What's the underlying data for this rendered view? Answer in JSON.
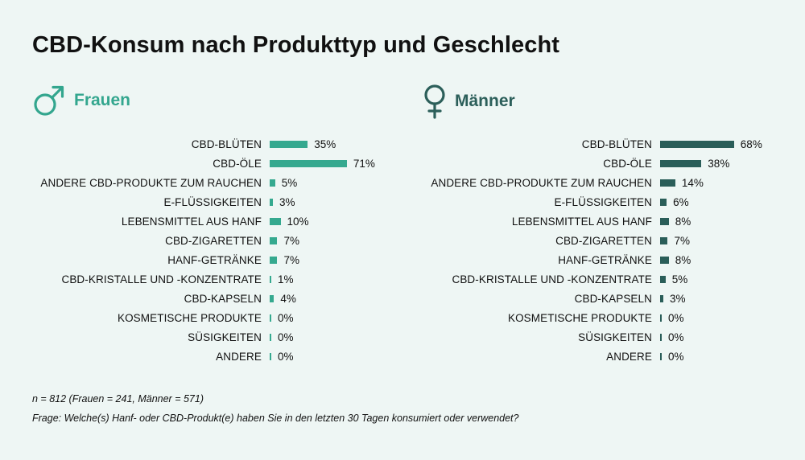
{
  "title": "CBD-Konsum nach Produkttyp und Geschlecht",
  "colors": {
    "frauen": "#35a98f",
    "maenner": "#2a5e59",
    "background": "#eef6f4"
  },
  "chart_data": [
    {
      "type": "bar",
      "orientation": "horizontal",
      "title": "Frauen",
      "icon": "male-symbol-icon",
      "categories": [
        "CBD-BLÜTEN",
        "CBD-ÖLE",
        "ANDERE CBD-PRODUKTE ZUM RAUCHEN",
        "E-FLÜSSIGKEITEN",
        "LEBENSMITTEL AUS HANF",
        "CBD-ZIGARETTEN",
        "HANF-GETRÄNKE",
        "CBD-KRISTALLE UND -KONZENTRATE",
        "CBD-KAPSELN",
        "KOSMETISCHE PRODUKTE",
        "SÜSIGKEITEN",
        "ANDERE"
      ],
      "values": [
        35,
        71,
        5,
        3,
        10,
        7,
        7,
        1,
        4,
        0,
        0,
        0
      ],
      "value_labels": [
        "35%",
        "71%",
        "5%",
        "3%",
        "10%",
        "7%",
        "7%",
        "1%",
        "4%",
        "0%",
        "0%",
        "0%"
      ],
      "unit": "%",
      "xlim": [
        0,
        100
      ],
      "grid": false
    },
    {
      "type": "bar",
      "orientation": "horizontal",
      "title": "Männer",
      "icon": "female-symbol-icon",
      "categories": [
        "CBD-BLÜTEN",
        "CBD-ÖLE",
        "ANDERE CBD-PRODUKTE ZUM RAUCHEN",
        "E-FLÜSSIGKEITEN",
        "LEBENSMITTEL AUS HANF",
        "CBD-ZIGARETTEN",
        "HANF-GETRÄNKE",
        "CBD-KRISTALLE UND -KONZENTRATE",
        "CBD-KAPSELN",
        "KOSMETISCHE PRODUKTE",
        "SÜSIGKEITEN",
        "ANDERE"
      ],
      "values": [
        68,
        38,
        14,
        6,
        8,
        7,
        8,
        5,
        3,
        0,
        0,
        0
      ],
      "value_labels": [
        "68%",
        "38%",
        "14%",
        "6%",
        "8%",
        "7%",
        "8%",
        "5%",
        "3%",
        "0%",
        "0%",
        "0%"
      ],
      "unit": "%",
      "xlim": [
        0,
        100
      ],
      "grid": false
    }
  ],
  "footnote_n": "n = 812 (Frauen = 241, Männer = 571)",
  "footnote_question": "Frage: Welche(s) Hanf- oder CBD-Produkt(e) haben Sie in den letzten 30 Tagen konsumiert oder verwendet?"
}
